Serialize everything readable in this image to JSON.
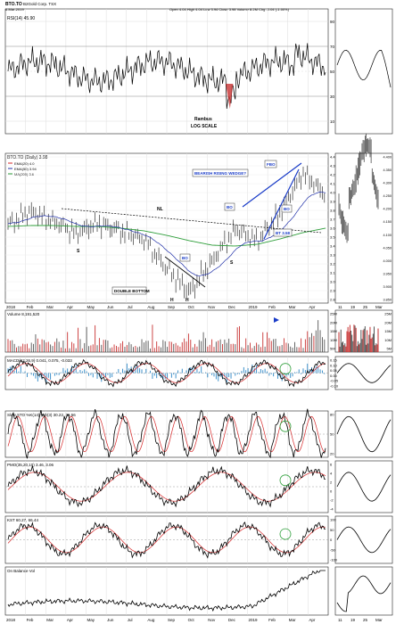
{
  "header": {
    "symbol": "BTO.TO",
    "company": "B2Gold Corp. TSX",
    "date": "6-Mar-2019",
    "quote": "Open 4.04  High 4.04  Low 3.94  Close 3.98  Volume 8.2M  Chg -0.04 (-1.00%)"
  },
  "panels": {
    "rsi": {
      "label": "RSI(14) 45.90",
      "ticks": [
        "90",
        "70",
        "50",
        "30",
        "10"
      ],
      "note1": "Rambus",
      "note2": "LOG SCALE"
    },
    "price": {
      "label": "BTO.TO (Daily) 3.98",
      "legend": [
        {
          "text": "EMA(20) 4.0",
          "color": "#d62728"
        },
        {
          "text": "EMA(50) 3.94",
          "color": "#1f2fa8"
        },
        {
          "text": "MA(200) 3.6",
          "color": "#2e9e3a"
        }
      ],
      "ticks": [
        "4.4",
        "4.3",
        "4.2",
        "4.1",
        "4.0",
        "3.9",
        "3.8",
        "3.7",
        "3.6",
        "3.5",
        "3.4",
        "3.3",
        "3.2",
        "3.1",
        "3.0",
        "2.9",
        "2.8"
      ],
      "side_ticks": [
        "4.400",
        "4.375",
        "4.350",
        "4.325",
        "4.300",
        "4.275",
        "4.250",
        "4.225",
        "4.200",
        "4.175",
        "4.150",
        "4.125",
        "4.100",
        "4.075",
        "4.050",
        "4.025",
        "4.000",
        "3.975",
        "3.950",
        "3.925",
        "3.900",
        "3.875",
        "3.850"
      ],
      "annotations": {
        "wedge": "BEARISH RISING WEDGE?",
        "fbo": "FBO",
        "bo1": "BO",
        "bo2": "BO",
        "bo3": "BO",
        "nl": "NL",
        "price_target": "BT 3.58",
        "double_bottom": "DOUBLE BOTTOM",
        "s1": "S",
        "s2": "S",
        "h1": "H",
        "h2": "H"
      },
      "x_labels_top": [
        "2018",
        "Feb",
        "Mar",
        "Apr",
        "May",
        "Jun",
        "Jul",
        "Aug",
        "Sep",
        "Oct",
        "Nov",
        "Dec",
        "2019",
        "Feb",
        "Mar",
        "Apr"
      ],
      "side_x_labels": [
        "11",
        "19",
        "25",
        "Mar"
      ]
    },
    "volume": {
      "label": "Volume 8,191,520",
      "ticks": [
        "25M",
        "20M",
        "15M",
        "10M",
        "5M"
      ]
    },
    "macd": {
      "label": "MACD(12,26,9) 0.041, 0.075, -0.033",
      "ticks": [
        "0.15",
        "0.10",
        "0.05",
        "0.00",
        "-0.05",
        "-0.10"
      ],
      "side_ticks": [
        "0.100",
        "0.075",
        "0.050",
        "0.025",
        "0.000",
        "-0.025"
      ]
    },
    "sto": {
      "label": "Slow STO %K(14) %D(3) 30.22, 36.56",
      "ticks": [
        "80",
        "50",
        "20"
      ]
    },
    "pmo": {
      "label": "PMO(35,20,10) 3.46, 3.06",
      "ticks": [
        "6",
        "4",
        "2",
        "0",
        "-2",
        "-4"
      ]
    },
    "kst": {
      "label": "KST 60.27, 66.44",
      "ticks": [
        "100",
        "50",
        "0",
        "-50",
        "-100"
      ],
      "side_ticks": [
        "75",
        "70",
        "65",
        "60",
        "55"
      ]
    },
    "obv": {
      "label": "On Balance Vol"
    }
  },
  "x_labels_bottom": [
    "2018",
    "Feb",
    "Mar",
    "Apr",
    "May",
    "Jun",
    "Jul",
    "Aug",
    "Sep",
    "Oct",
    "Nov",
    "Dec",
    "2019",
    "Feb",
    "Mar",
    "Apr"
  ],
  "side_x_labels_bottom": [
    "11",
    "19",
    "25",
    "Mar"
  ],
  "colors": {
    "price_line": "#000000",
    "ema20": "#d62728",
    "ema50": "#1f2fa8",
    "ma200": "#2e9e3a",
    "histogram": "#2a86c6",
    "volume_up": "#555555",
    "volume_down": "#c83232",
    "annotation_blue": "#1a3cc8"
  },
  "chart_data": {
    "type": "line",
    "title": "BTO.TO (Daily) 3.98",
    "x": [
      "2018",
      "Feb",
      "Mar",
      "Apr",
      "May",
      "Jun",
      "Jul",
      "Aug",
      "Sep",
      "Oct",
      "Nov",
      "Dec",
      "2019",
      "Feb",
      "Mar"
    ],
    "series": [
      {
        "name": "BTO.TO",
        "values": [
          3.65,
          3.8,
          3.7,
          3.55,
          3.65,
          3.55,
          3.45,
          3.15,
          2.9,
          3.25,
          3.6,
          3.45,
          3.75,
          4.2,
          3.98
        ]
      },
      {
        "name": "MA(200)",
        "values": [
          3.62,
          3.63,
          3.63,
          3.62,
          3.62,
          3.6,
          3.57,
          3.52,
          3.46,
          3.41,
          3.4,
          3.42,
          3.48,
          3.55,
          3.6
        ]
      }
    ],
    "ylim": [
      2.8,
      4.4
    ],
    "grid": true
  }
}
